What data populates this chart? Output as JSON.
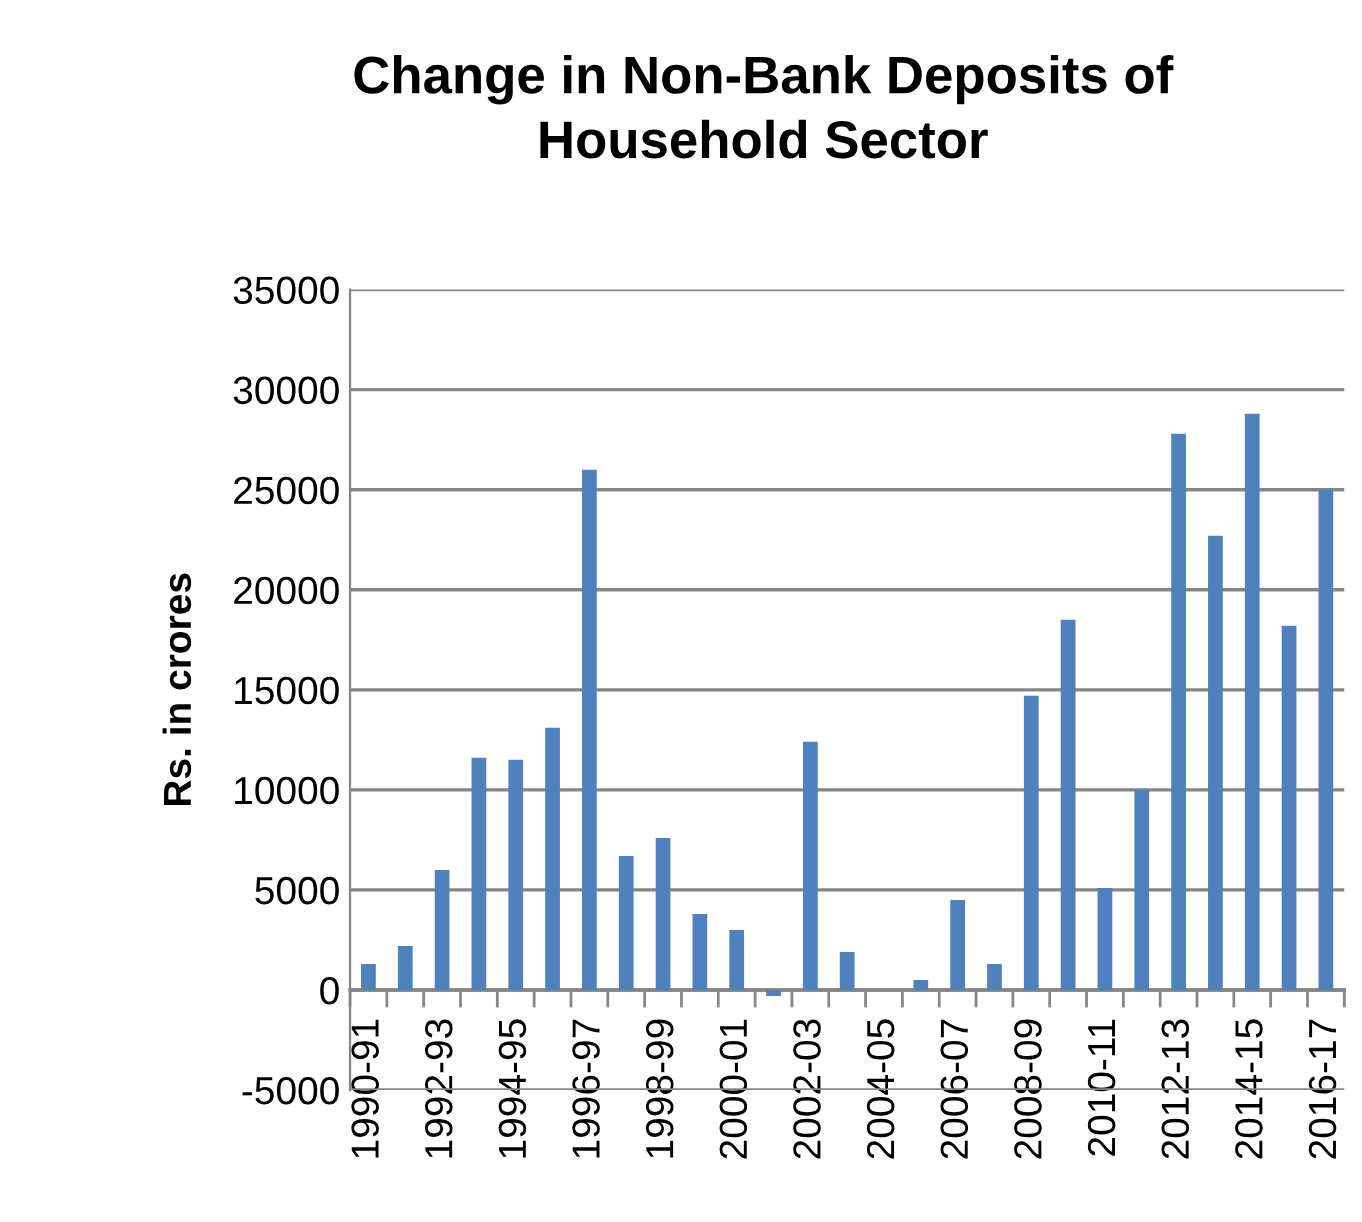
{
  "chart_data": {
    "type": "bar",
    "title": "Change in Non-Bank Deposits of\nHousehold Sector",
    "ylabel": "Rs. in crores",
    "categories": [
      "1990-91",
      null,
      "1992-93",
      null,
      "1994-95",
      null,
      "1996-97",
      null,
      "1998-99",
      null,
      "2000-01",
      null,
      "2002-03",
      null,
      "2004-05",
      null,
      "2006-07",
      null,
      "2008-09",
      null,
      "2010-11",
      null,
      "2012-13",
      null,
      "2014-15",
      null,
      "2016-17"
    ],
    "values": [
      1300,
      2200,
      6000,
      11600,
      11500,
      13100,
      26000,
      6700,
      7600,
      3800,
      3000,
      -300,
      12400,
      1900,
      0,
      500,
      4500,
      1300,
      14700,
      18500,
      5100,
      10000,
      27800,
      22700,
      28800,
      18200,
      25000
    ],
    "color": "#4f81bd",
    "ylim": [
      -5000,
      35000
    ],
    "yticks": [
      -5000,
      0,
      5000,
      10000,
      15000,
      20000,
      25000,
      30000,
      35000
    ],
    "grid": "y",
    "legend": false
  }
}
